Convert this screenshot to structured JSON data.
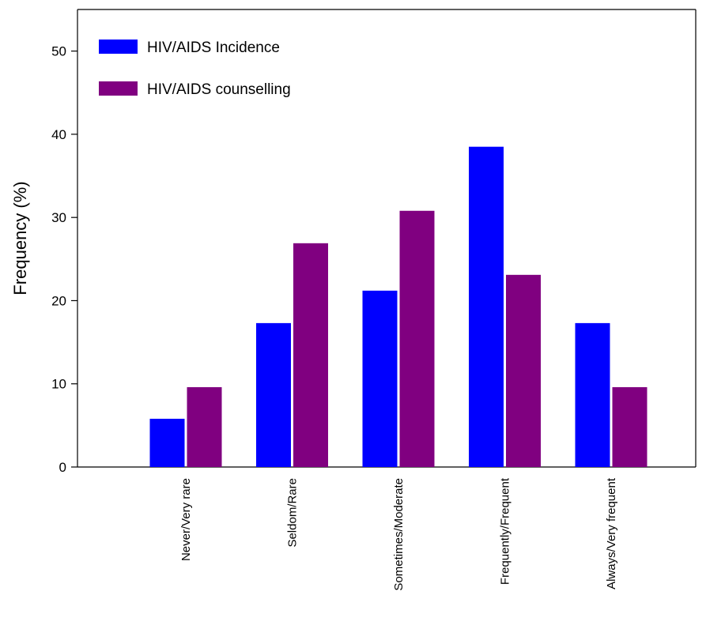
{
  "chart_data": {
    "type": "bar",
    "title": "",
    "xlabel": "",
    "ylabel": "Frequency (%)",
    "ylim": [
      0,
      55
    ],
    "yticks": [
      0,
      10,
      20,
      30,
      40,
      50
    ],
    "categories": [
      "Never/Very rare",
      "Seldom/Rare",
      "Sometimes/Moderate",
      "Frequently/Frequent",
      "Always/Very frequent"
    ],
    "series": [
      {
        "name": "HIV/AIDS Incidence",
        "color": "#0000ff",
        "values": [
          5.8,
          17.3,
          21.2,
          38.5,
          17.3
        ]
      },
      {
        "name": "HIV/AIDS counselling",
        "color": "#800080",
        "values": [
          9.6,
          26.9,
          30.8,
          23.1,
          9.6
        ]
      }
    ],
    "legend_position": "top-left",
    "grid": false
  }
}
